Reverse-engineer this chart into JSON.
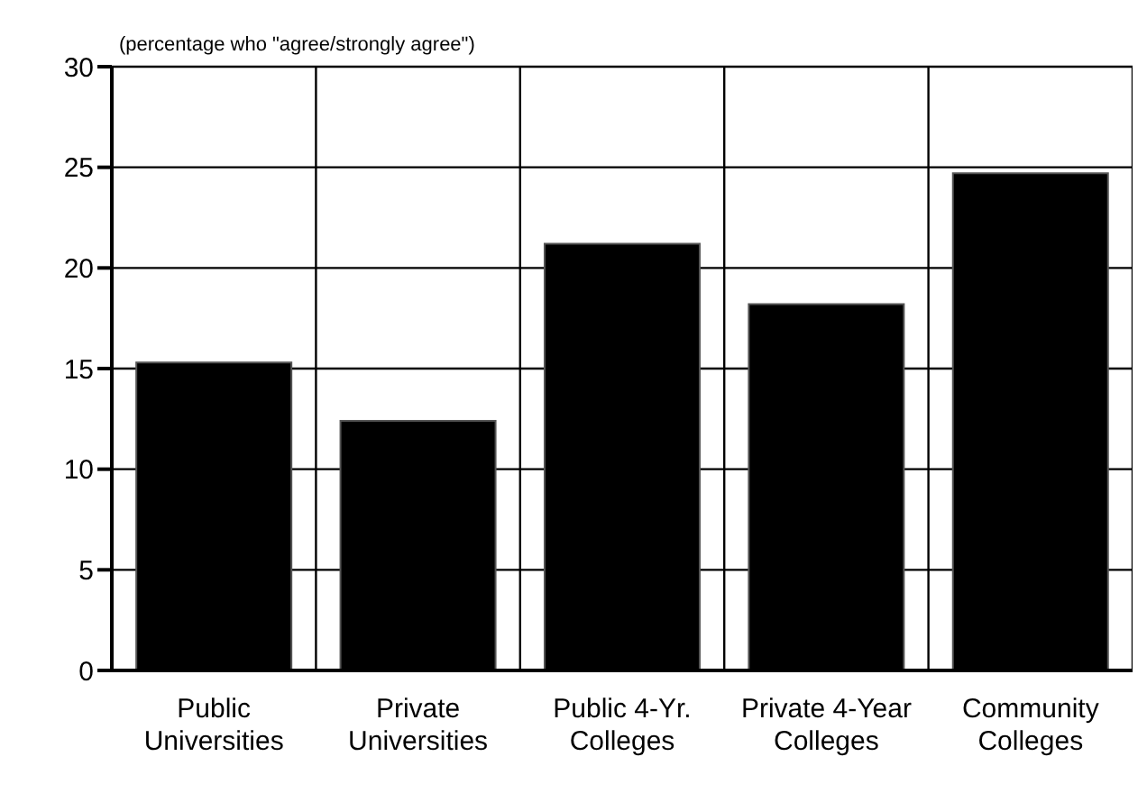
{
  "chart_data": {
    "type": "bar",
    "annotations": [
      "(percentage who \"agree/strongly agree\")"
    ],
    "categories": [
      "Public Universities",
      "Private Universities",
      "Public 4-Yr. Colleges",
      "Private 4-Year Colleges",
      "Community Colleges"
    ],
    "values": [
      15.3,
      12.4,
      21.2,
      18.2,
      24.7
    ],
    "color": "#000000",
    "ylim": [
      0,
      30
    ],
    "yticks": [
      0,
      5,
      10,
      15,
      20,
      25,
      30
    ],
    "grid": true
  }
}
